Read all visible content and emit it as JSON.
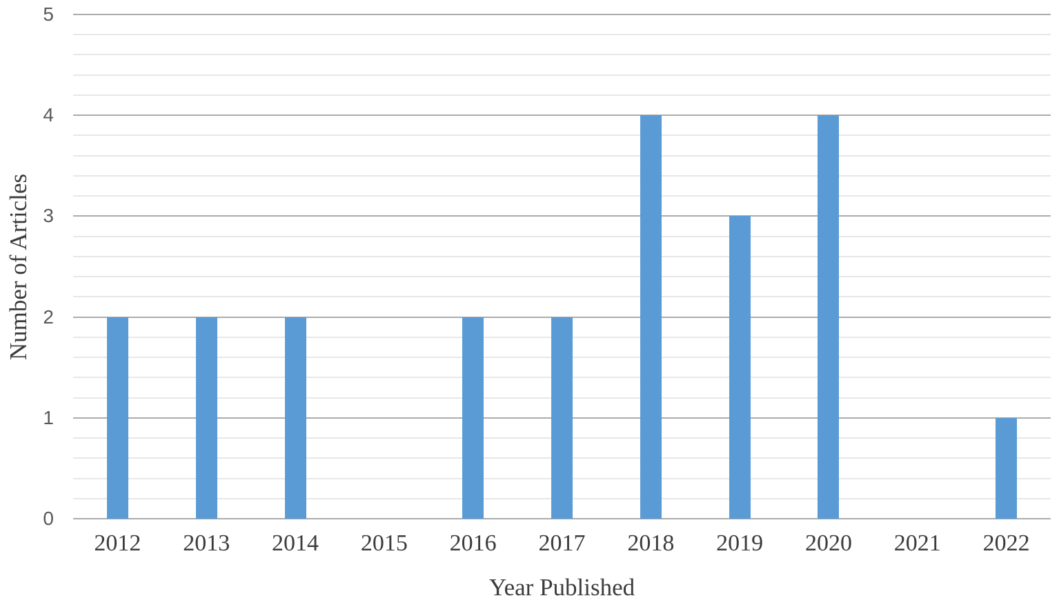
{
  "chart_data": {
    "type": "bar",
    "title": "",
    "categories": [
      "2012",
      "2013",
      "2014",
      "2015",
      "2016",
      "2017",
      "2018",
      "2019",
      "2020",
      "2021",
      "2022"
    ],
    "values": [
      2,
      2,
      2,
      0,
      2,
      2,
      4,
      3,
      4,
      0,
      1
    ],
    "xlabel": "Year Published",
    "ylabel": "Number of Articles",
    "ylim": [
      0,
      5
    ],
    "y_major_ticks": [
      0,
      1,
      2,
      3,
      4,
      5
    ],
    "y_minor_step": 0.2,
    "grid": "horizontal major and minor gridlines, no vertical gridlines",
    "legend_position": "none",
    "bar_color": "#5b9bd5",
    "major_grid_color": "#ababab",
    "minor_grid_color": "#e7e7e7",
    "tick_label_color": "#595959",
    "axis_title_color": "#3c3c3c",
    "background_color": "#ffffff"
  }
}
